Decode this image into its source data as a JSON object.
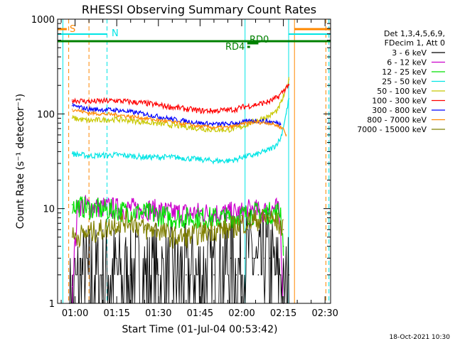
{
  "chart_data": {
    "type": "line",
    "title": "RHESSI Observing Summary Count Rates",
    "xlabel": "Start Time (01-Jul-04 00:53:42)",
    "ylabel": "Count Rate (s⁻¹ detector⁻¹)",
    "x_range_min": [
      53.7,
      152
    ],
    "x_ticks": [
      "01:00",
      "01:15",
      "01:30",
      "01:45",
      "02:00",
      "02:15",
      "02:30"
    ],
    "y_scale": "log",
    "ylim": [
      1,
      1000
    ],
    "y_ticks": [
      "1",
      "10",
      "100",
      "1000"
    ],
    "legend_header": [
      "Det 1,3,4,5,6,9,",
      "FDecim 1, Att 0"
    ],
    "legend_position": "right",
    "series": [
      {
        "name": "3 - 6 keV",
        "color": "#000000",
        "points": [
          [
            58,
            1
          ],
          [
            62,
            2
          ],
          [
            70,
            2
          ],
          [
            80,
            2
          ],
          [
            90,
            2
          ],
          [
            100,
            2
          ],
          [
            110,
            2
          ],
          [
            116,
            3
          ],
          [
            118,
            2
          ],
          [
            121,
            3
          ],
          [
            124,
            3
          ],
          [
            126,
            2
          ],
          [
            128,
            3
          ],
          [
            130,
            3
          ],
          [
            132,
            2
          ],
          [
            134,
            2
          ],
          [
            135,
            1
          ],
          [
            137,
            2
          ]
        ]
      },
      {
        "name": "6 - 12 keV",
        "color": "#cc00cc",
        "points": [
          [
            59,
            1.5
          ],
          [
            61,
            11
          ],
          [
            75,
            10
          ],
          [
            85,
            10
          ],
          [
            95,
            9
          ],
          [
            105,
            9
          ],
          [
            115,
            9
          ],
          [
            120,
            9
          ],
          [
            124,
            10
          ],
          [
            127,
            9
          ],
          [
            130,
            10
          ],
          [
            133,
            10
          ],
          [
            134,
            6
          ],
          [
            135,
            1
          ]
        ]
      },
      {
        "name": "12 - 25 keV",
        "color": "#00e000",
        "points": [
          [
            59,
            11
          ],
          [
            65,
            10
          ],
          [
            75,
            9.5
          ],
          [
            85,
            9
          ],
          [
            95,
            8
          ],
          [
            105,
            8
          ],
          [
            115,
            8
          ],
          [
            120,
            8.5
          ],
          [
            125,
            9
          ],
          [
            129,
            9
          ],
          [
            132,
            9
          ],
          [
            134,
            9.5
          ],
          [
            135,
            4
          ]
        ]
      },
      {
        "name": "25 - 50 keV",
        "color": "#00e5e5",
        "points": [
          [
            59,
            38
          ],
          [
            65,
            36
          ],
          [
            75,
            37
          ],
          [
            85,
            35
          ],
          [
            95,
            35
          ],
          [
            105,
            33
          ],
          [
            110,
            32
          ],
          [
            115,
            32
          ],
          [
            118,
            33
          ],
          [
            120,
            35
          ],
          [
            125,
            37
          ],
          [
            130,
            42
          ],
          [
            132,
            46
          ],
          [
            134,
            55
          ],
          [
            136,
            100
          ],
          [
            137,
            145
          ]
        ]
      },
      {
        "name": "50 - 100 keV",
        "color": "#c8c800",
        "points": [
          [
            59,
            90
          ],
          [
            65,
            85
          ],
          [
            75,
            88
          ],
          [
            85,
            82
          ],
          [
            95,
            76
          ],
          [
            105,
            70
          ],
          [
            110,
            68
          ],
          [
            115,
            68
          ],
          [
            118,
            70
          ],
          [
            120,
            73
          ],
          [
            125,
            85
          ],
          [
            130,
            95
          ],
          [
            133,
            110
          ],
          [
            135,
            150
          ],
          [
            137,
            230
          ]
        ]
      },
      {
        "name": "100 - 300 keV",
        "color": "#ff0000",
        "points": [
          [
            59,
            140
          ],
          [
            65,
            135
          ],
          [
            75,
            138
          ],
          [
            85,
            130
          ],
          [
            95,
            118
          ],
          [
            105,
            108
          ],
          [
            110,
            108
          ],
          [
            115,
            110
          ],
          [
            118,
            112
          ],
          [
            120,
            118
          ],
          [
            125,
            125
          ],
          [
            130,
            135
          ],
          [
            133,
            150
          ],
          [
            135,
            175
          ],
          [
            137,
            205
          ]
        ]
      },
      {
        "name": "300 - 800 keV",
        "color": "#0000ff",
        "points": [
          [
            59,
            122
          ],
          [
            65,
            112
          ],
          [
            75,
            110
          ],
          [
            85,
            100
          ],
          [
            95,
            88
          ],
          [
            105,
            80
          ],
          [
            110,
            78
          ],
          [
            115,
            78
          ],
          [
            118,
            80
          ],
          [
            122,
            83
          ],
          [
            125,
            85
          ],
          [
            130,
            83
          ],
          [
            133,
            80
          ],
          [
            134,
            78
          ]
        ]
      },
      {
        "name": "800 - 7000 keV",
        "color": "#ff8800",
        "points": [
          [
            59,
            112
          ],
          [
            65,
            102
          ],
          [
            75,
            98
          ],
          [
            85,
            90
          ],
          [
            95,
            82
          ],
          [
            105,
            74
          ],
          [
            110,
            72
          ],
          [
            115,
            72
          ],
          [
            118,
            75
          ],
          [
            122,
            80
          ],
          [
            125,
            82
          ],
          [
            130,
            80
          ],
          [
            133,
            75
          ],
          [
            135,
            70
          ],
          [
            136,
            60
          ]
        ]
      },
      {
        "name": "7000 - 15000 keV",
        "color": "#808000",
        "points": [
          [
            59,
            5
          ],
          [
            65,
            5.5
          ],
          [
            70,
            6
          ],
          [
            75,
            7
          ],
          [
            80,
            7.5
          ],
          [
            85,
            6
          ],
          [
            90,
            6
          ],
          [
            95,
            5
          ],
          [
            100,
            5
          ],
          [
            105,
            5.5
          ],
          [
            110,
            6
          ],
          [
            115,
            6
          ],
          [
            120,
            7
          ],
          [
            125,
            7.5
          ],
          [
            130,
            8
          ],
          [
            133,
            7
          ],
          [
            135,
            6
          ]
        ]
      }
    ],
    "annotations": {
      "saa_label": "S",
      "night_label": "N",
      "flags": [
        {
          "label": "RD0",
          "x_range_min": [
            122,
            126
          ]
        },
        {
          "label": "RD4",
          "x_range_min": [
            122,
            123
          ]
        }
      ]
    },
    "vertical_markers": [
      {
        "x_min": 55.6,
        "color": "#00e5e5",
        "style": "solid"
      },
      {
        "x_min": 57.7,
        "color": "#ff8800",
        "style": "dashed"
      },
      {
        "x_min": 65.0,
        "color": "#ff8800",
        "style": "dashed"
      },
      {
        "x_min": 71.5,
        "color": "#00e5e5",
        "style": "dashed"
      },
      {
        "x_min": 121.2,
        "color": "#00e5e5",
        "style": "solid"
      },
      {
        "x_min": 136.9,
        "color": "#00e5e5",
        "style": "solid"
      },
      {
        "x_min": 139.0,
        "color": "#ff8800",
        "style": "solid"
      },
      {
        "x_min": 150.3,
        "color": "#ff8800",
        "style": "dashed"
      },
      {
        "x_min": 151.4,
        "color": "#00e5e5",
        "style": "dashed"
      }
    ],
    "footer": "18-Oct-2021 10:30"
  }
}
